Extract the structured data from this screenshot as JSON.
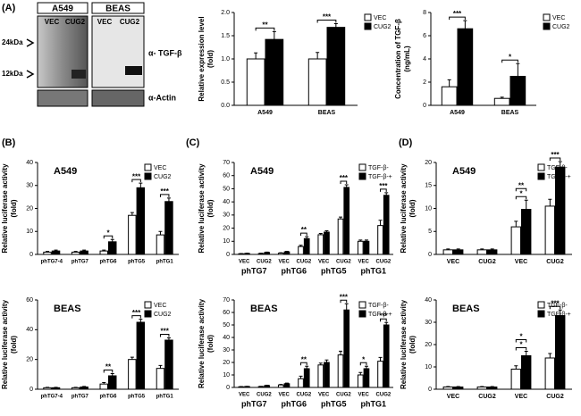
{
  "panels": [
    "(A)",
    "(B)",
    "(C)",
    "(D)"
  ],
  "blot": {
    "cells": [
      "A549",
      "BEAS"
    ],
    "lanes": [
      "VEC",
      "CUG2",
      "VEC",
      "CUG2"
    ],
    "markers": [
      "24kDa",
      "12kDa"
    ],
    "antibodies": [
      "α- TGF-β",
      "α-Actin"
    ]
  },
  "chart_data": [
    {
      "type": "bar",
      "ylabel": [
        "Relative expression level",
        "(fold)"
      ],
      "categories": [
        "A549",
        "BEAS"
      ],
      "ylim": [
        0,
        2
      ],
      "yticks": [
        {
          "value": 0,
          "label": "0.0"
        },
        {
          "value": 0.5,
          "label": "0.5"
        },
        {
          "value": 1,
          "label": "1.0"
        },
        {
          "value": 1.5,
          "label": "1.5"
        },
        {
          "value": 2,
          "label": "2.0"
        }
      ],
      "legend": "outside right",
      "series": [
        {
          "name": "VEC",
          "color": "#ffffff",
          "values": [
            1.0,
            1.0
          ],
          "errors": [
            0.13,
            0.14
          ]
        },
        {
          "name": "CUG2",
          "color": "#000000",
          "values": [
            1.42,
            1.68
          ],
          "errors": [
            0.17,
            0.08
          ]
        }
      ],
      "annotations": [
        {
          "text": "**",
          "category": 0
        },
        {
          "text": "***",
          "category": 1
        }
      ]
    },
    {
      "type": "bar",
      "ylabel": [
        "Concentration of TGF-β",
        "(ng/mL)"
      ],
      "categories": [
        "A549",
        "BEAS"
      ],
      "ylim": [
        0,
        8
      ],
      "yticks": [
        0,
        2,
        4,
        6,
        8
      ],
      "legend": "outside right",
      "series": [
        {
          "name": "VEC",
          "color": "#ffffff",
          "values": [
            1.6,
            0.6
          ],
          "errors": [
            0.6,
            0.1
          ]
        },
        {
          "name": "CUG2",
          "color": "#000000",
          "values": [
            6.6,
            2.5
          ],
          "errors": [
            0.7,
            1.1
          ]
        }
      ],
      "annotations": [
        {
          "text": "***",
          "category": 0
        },
        {
          "text": "*",
          "category": 1
        }
      ]
    },
    {
      "type": "bar",
      "title": "A549",
      "ylabel": [
        "Relative luciferase activity",
        "(fold)"
      ],
      "categories": [
        "phTG7-4",
        "phTG7",
        "phTG6",
        "phTG5",
        "phTG1"
      ],
      "ylim": [
        0,
        40
      ],
      "yticks": [
        0,
        10,
        20,
        30,
        40
      ],
      "legend": "upper right",
      "series": [
        {
          "name": "VEC",
          "color": "#ffffff",
          "values": [
            1,
            1,
            1.5,
            17,
            8.5
          ],
          "errors": [
            0.3,
            0.3,
            0.4,
            1.2,
            1.5
          ]
        },
        {
          "name": "CUG2",
          "color": "#000000",
          "values": [
            1.5,
            1.5,
            5.5,
            29,
            23
          ],
          "errors": [
            0.4,
            0.4,
            1,
            2,
            1.5
          ]
        }
      ],
      "annotations": [
        {
          "text": "*",
          "category": 2
        },
        {
          "text": "***",
          "category": 3
        },
        {
          "text": "***",
          "category": 4
        }
      ]
    },
    {
      "type": "bar",
      "title": "BEAS",
      "ylabel": [
        "Relative luciferase activity",
        "(fold)"
      ],
      "categories": [
        "phTG7-4",
        "phTG7",
        "phTG6",
        "phTG5",
        "phTG1"
      ],
      "ylim": [
        0,
        60
      ],
      "yticks": [
        0,
        20,
        40,
        60
      ],
      "legend": "upper right",
      "series": [
        {
          "name": "VEC",
          "color": "#ffffff",
          "values": [
            1,
            1,
            3.5,
            20,
            14
          ],
          "errors": [
            0.3,
            0.3,
            1,
            1.5,
            2
          ]
        },
        {
          "name": "CUG2",
          "color": "#000000",
          "values": [
            1,
            1.5,
            9,
            45,
            33
          ],
          "errors": [
            0.3,
            0.4,
            1.5,
            2,
            1.5
          ]
        }
      ],
      "annotations": [
        {
          "text": "**",
          "category": 2
        },
        {
          "text": "***",
          "category": 3
        },
        {
          "text": "***",
          "category": 4
        }
      ]
    },
    {
      "type": "bar",
      "title": "A549",
      "ylabel": [
        "Relative luciferase activity",
        "(fold)"
      ],
      "categories": [
        "VEC",
        "CUG2",
        "VEC",
        "CUG2",
        "VEC",
        "CUG2",
        "VEC",
        "CUG2"
      ],
      "groups": [
        "phTG7",
        "phTG6",
        "phTG5",
        "phTG1"
      ],
      "ylim": [
        0,
        70
      ],
      "yticks": [
        0,
        10,
        20,
        30,
        40,
        50,
        60,
        70
      ],
      "legend": "upper right",
      "series": [
        {
          "name": "TGF-β-",
          "color": "#ffffff",
          "values": [
            0.5,
            0.7,
            1,
            6,
            15,
            27,
            10,
            22
          ],
          "errors": [
            0.2,
            0.2,
            0.3,
            1,
            1,
            1.5,
            1,
            4
          ]
        },
        {
          "name": "TGF-β-+",
          "color": "#000000",
          "values": [
            0.7,
            1.5,
            2,
            12,
            17,
            51,
            10,
            45
          ],
          "errors": [
            0.2,
            0.3,
            0.4,
            1.5,
            1,
            2,
            1,
            2
          ]
        }
      ],
      "annotations": [
        {
          "text": "**",
          "category": 3
        },
        {
          "text": "***",
          "category": 5
        },
        {
          "text": "***",
          "category": 7
        }
      ]
    },
    {
      "type": "bar",
      "title": "BEAS",
      "ylabel": [
        "Relative luciferase activity",
        "(fold)"
      ],
      "categories": [
        "VEC",
        "CUG2",
        "VEC",
        "CUG2",
        "VEC",
        "CUG2",
        "VEC",
        "CUG2"
      ],
      "groups": [
        "phTG7",
        "phTG6",
        "phTG5",
        "phTG1"
      ],
      "ylim": [
        0,
        70
      ],
      "yticks": [
        0,
        10,
        20,
        30,
        40,
        50,
        60,
        70
      ],
      "legend": "upper right",
      "series": [
        {
          "name": "TGF-β-",
          "color": "#ffffff",
          "values": [
            0.5,
            0.7,
            2,
            7,
            18,
            26,
            10,
            21
          ],
          "errors": [
            0.2,
            0.2,
            0.4,
            2,
            1.5,
            3,
            2,
            3
          ]
        },
        {
          "name": "TGF-β-+",
          "color": "#000000",
          "values": [
            0.7,
            1.5,
            3,
            15,
            20,
            62,
            15,
            50
          ],
          "errors": [
            0.2,
            0.3,
            0.5,
            2,
            2,
            5,
            2,
            2
          ]
        }
      ],
      "annotations": [
        {
          "text": "**",
          "category": 3
        },
        {
          "text": "***",
          "category": 5
        },
        {
          "text": "*",
          "category": 6
        },
        {
          "text": "***",
          "category": 7
        }
      ]
    },
    {
      "type": "bar",
      "title": "A549",
      "ylabel": [
        "Relative luciferase activity",
        "(fold)"
      ],
      "categories": [
        "VEC",
        "CUG2",
        "VEC",
        "CUG2"
      ],
      "ylim": [
        0,
        20
      ],
      "yticks": [
        0,
        5,
        10,
        15,
        20
      ],
      "legend": "upper right",
      "series": [
        {
          "name": "TGF-β-",
          "color": "#ffffff",
          "values": [
            1,
            1,
            6,
            10.5
          ],
          "errors": [
            0.2,
            0.2,
            1.2,
            1.5
          ]
        },
        {
          "name": "TGF-β-+",
          "color": "#000000",
          "values": [
            1,
            1,
            9.8,
            19
          ],
          "errors": [
            0.2,
            0.2,
            2,
            1.2
          ]
        }
      ],
      "annotations": [
        {
          "text": "*",
          "category": 2
        },
        {
          "text": "**",
          "category": 2
        },
        {
          "text": "***",
          "category": 3
        }
      ]
    },
    {
      "type": "bar",
      "title": "BEAS",
      "ylabel": [
        "Relative luciferase activity",
        "(fold)"
      ],
      "categories": [
        "VEC",
        "CUG2",
        "VEC",
        "CUG2"
      ],
      "ylim": [
        0,
        40
      ],
      "yticks": [
        0,
        10,
        20,
        30,
        40
      ],
      "legend": "upper right",
      "series": [
        {
          "name": "TGF-β-",
          "color": "#ffffff",
          "values": [
            1,
            1,
            9,
            14
          ],
          "errors": [
            0.2,
            0.2,
            1.5,
            2
          ]
        },
        {
          "name": "TGF-β-+",
          "color": "#000000",
          "values": [
            1,
            1,
            15,
            33
          ],
          "errors": [
            0.2,
            0.2,
            2,
            2.5
          ]
        }
      ],
      "annotations": [
        {
          "text": "*",
          "category": 2
        },
        {
          "text": "*",
          "category": 2
        },
        {
          "text": "***",
          "category": 3
        }
      ]
    }
  ]
}
